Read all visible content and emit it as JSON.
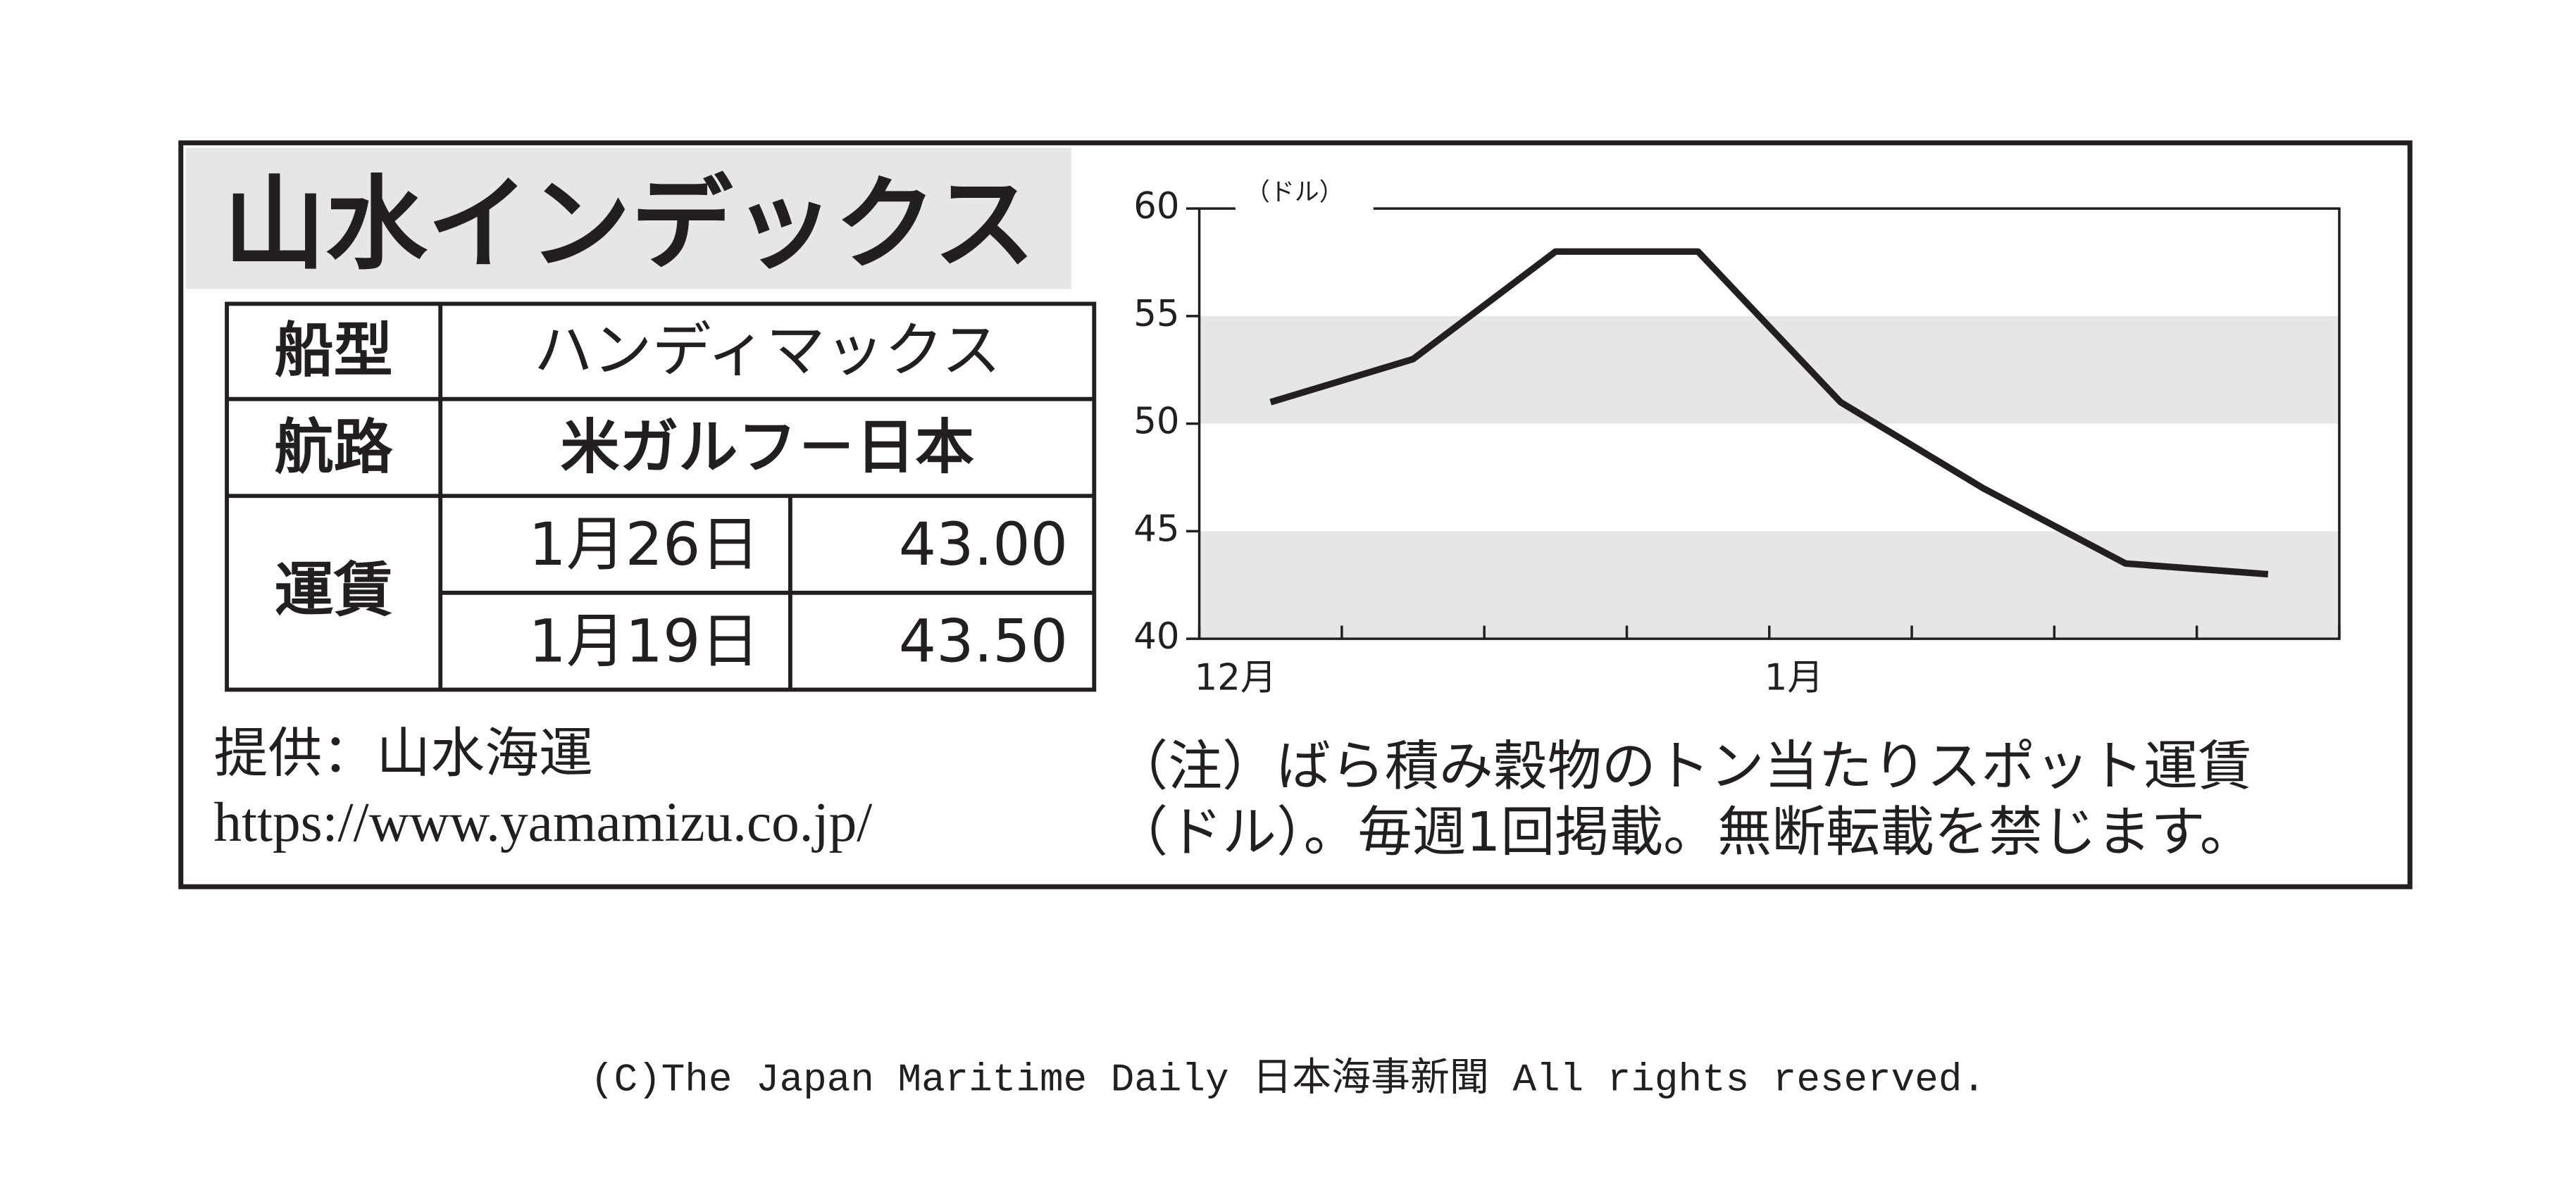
{
  "title": "山水インデックス",
  "table": {
    "ship_type": {
      "label": "船型",
      "value": "ハンディマックス"
    },
    "route": {
      "label": "航路",
      "value": "米ガルフ－日本"
    },
    "freight": {
      "label": "運賃",
      "rows": [
        [
          "1月26日",
          "43.00"
        ],
        [
          "1月19日",
          "43.50"
        ]
      ]
    }
  },
  "provider": "提供：山水海運",
  "url": "https://www.yamamizu.co.jp/",
  "note": [
    "（注）ばら積み穀物のトン当たりスポット運賃",
    "（ドル）。毎週1回掲載。無断転載を禁じます。"
  ],
  "copyright": "(C)The Japan Maritime Daily 日本海事新聞 All rights reserved.",
  "chart_data": {
    "type": "line",
    "y_label": "（ドル）",
    "categories": [
      "12月",
      null,
      null,
      null,
      "1月",
      null,
      null,
      null
    ],
    "values": [
      51,
      53,
      58,
      58,
      51,
      47,
      43.5,
      43
    ],
    "color": "#231f20",
    "ylim": [
      40,
      60
    ],
    "yticks": [
      40,
      45,
      50,
      55,
      60
    ],
    "shaded_bands": true,
    "grid": false
  }
}
